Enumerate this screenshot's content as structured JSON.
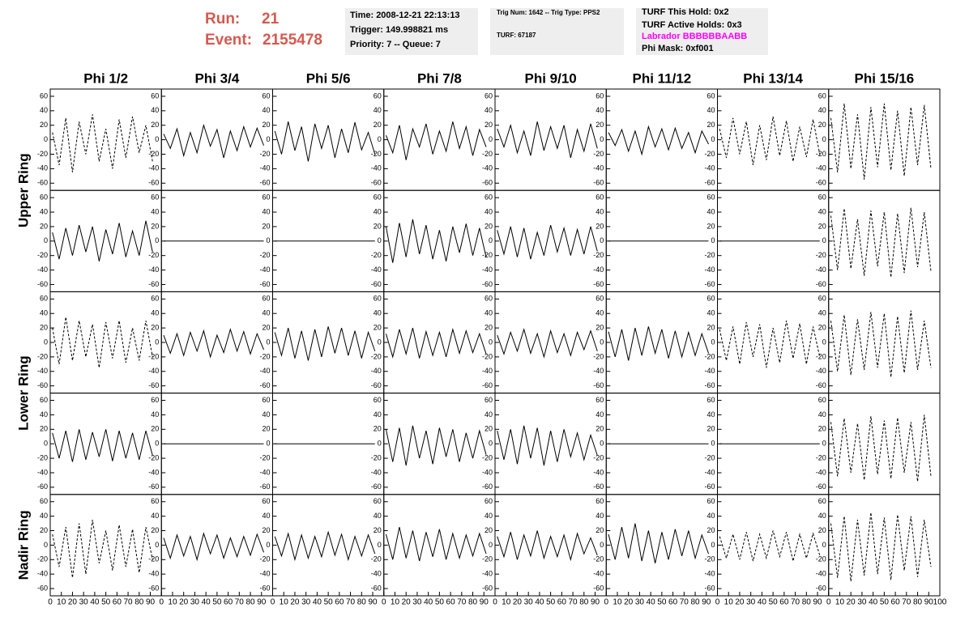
{
  "header": {
    "run_label": "Run:",
    "run": "21",
    "event_label": "Event:",
    "event": "2155478",
    "time": "Time: 2008-12-21 22:13:13",
    "trigger": "Trigger: 149.998821 ms",
    "priority": "Priority: 7 -- Queue: 7",
    "trig_num": "Trig Num: 1642 -- Trig Type: PPS2",
    "turf": "TURF: 67187",
    "turf_hold": "TURF This Hold: 0x2",
    "turf_active": "TURF Active Holds: 0x3",
    "labrador": "Labrador BBBBBBAABB",
    "phi_mask": "Phi Mask: 0xf001"
  },
  "chart_data": {
    "type": "waveform-grid",
    "columns": [
      "Phi 1/2",
      "Phi 3/4",
      "Phi 5/6",
      "Phi 7/8",
      "Phi 9/10",
      "Phi 11/12",
      "Phi 13/14",
      "Phi 15/16"
    ],
    "ring_labels": [
      "Upper Ring",
      "Lower Ring",
      "Nadir Ring"
    ],
    "xlim": [
      0,
      100
    ],
    "xticks": [
      0,
      10,
      20,
      30,
      40,
      50,
      60,
      70,
      80,
      90,
      100
    ],
    "ylim": [
      -70,
      70
    ],
    "yticks": [
      -60,
      -40,
      -20,
      0,
      20,
      40,
      60
    ],
    "x": [
      2,
      8,
      14,
      20,
      26,
      32,
      38,
      44,
      50,
      56,
      62,
      68,
      74,
      80,
      86,
      92
    ],
    "panels": [
      [
        {
          "style": "dashed",
          "values": [
            10,
            -35,
            30,
            -45,
            25,
            -20,
            35,
            -30,
            15,
            -40,
            28,
            -25,
            32,
            -18,
            20,
            -30
          ]
        },
        {
          "style": "solid",
          "values": [
            8,
            -12,
            15,
            -22,
            10,
            -18,
            20,
            -9,
            14,
            -25,
            12,
            -15,
            18,
            -10,
            16,
            -8
          ]
        },
        {
          "style": "solid",
          "values": [
            12,
            -20,
            25,
            -15,
            18,
            -30,
            22,
            -12,
            20,
            -25,
            15,
            -18,
            24,
            -14,
            10,
            -20
          ]
        },
        {
          "style": "solid",
          "values": [
            6,
            -18,
            20,
            -28,
            15,
            -10,
            22,
            -20,
            12,
            -16,
            25,
            -12,
            18,
            -22,
            14,
            -10
          ]
        },
        {
          "style": "solid",
          "values": [
            15,
            -10,
            20,
            -18,
            12,
            -22,
            25,
            -15,
            18,
            -12,
            20,
            -25,
            14,
            -16,
            22,
            -12
          ]
        },
        {
          "style": "solid",
          "values": [
            10,
            -8,
            14,
            -16,
            12,
            -20,
            18,
            -10,
            15,
            -14,
            16,
            -12,
            10,
            -18,
            12,
            -6
          ]
        },
        {
          "style": "dashed",
          "values": [
            15,
            -25,
            30,
            -20,
            25,
            -35,
            20,
            -28,
            32,
            -22,
            26,
            -30,
            18,
            -24,
            28,
            -20
          ]
        },
        {
          "style": "dashed",
          "values": [
            30,
            -45,
            50,
            -40,
            35,
            -55,
            45,
            -38,
            50,
            -42,
            40,
            -50,
            45,
            -35,
            48,
            -40
          ]
        }
      ],
      [
        {
          "style": "solid",
          "values": [
            12,
            -25,
            18,
            -20,
            22,
            -15,
            20,
            -28,
            16,
            -18,
            25,
            -22,
            14,
            -20,
            28,
            -15
          ]
        },
        {
          "style": "solid",
          "values": [
            0,
            0,
            0,
            0,
            0,
            0,
            0,
            0,
            0,
            0,
            0,
            0,
            0,
            0,
            0,
            0
          ]
        },
        {
          "style": "solid",
          "values": [
            0,
            0,
            0,
            0,
            0,
            0,
            0,
            0,
            0,
            0,
            0,
            0,
            0,
            0,
            0,
            0
          ]
        },
        {
          "style": "solid",
          "values": [
            20,
            -30,
            25,
            -22,
            30,
            -18,
            22,
            -25,
            15,
            -28,
            20,
            -16,
            24,
            -20,
            18,
            -22
          ]
        },
        {
          "style": "solid",
          "values": [
            15,
            -18,
            20,
            -22,
            18,
            -25,
            12,
            -20,
            22,
            -15,
            18,
            -20,
            16,
            -18,
            20,
            -14
          ]
        },
        {
          "style": "solid",
          "values": [
            0,
            0,
            0,
            0,
            0,
            0,
            0,
            0,
            0,
            0,
            0,
            0,
            0,
            0,
            0,
            0
          ]
        },
        {
          "style": "solid",
          "values": [
            0,
            0,
            0,
            0,
            0,
            0,
            0,
            0,
            0,
            0,
            0,
            0,
            0,
            0,
            0,
            0
          ]
        },
        {
          "style": "dashed",
          "values": [
            35,
            -40,
            45,
            -38,
            30,
            -48,
            42,
            -35,
            40,
            -50,
            38,
            -44,
            46,
            -36,
            40,
            -42
          ]
        }
      ],
      [
        {
          "style": "dashed",
          "values": [
            20,
            -30,
            35,
            -25,
            30,
            -20,
            25,
            -35,
            28,
            -22,
            30,
            -28,
            20,
            -25,
            30,
            -20
          ]
        },
        {
          "style": "solid",
          "values": [
            10,
            -15,
            12,
            -18,
            14,
            -12,
            16,
            -20,
            10,
            -14,
            18,
            -12,
            15,
            -16,
            12,
            -10
          ]
        },
        {
          "style": "solid",
          "values": [
            14,
            -18,
            20,
            -22,
            16,
            -25,
            18,
            -20,
            22,
            -15,
            20,
            -18,
            16,
            -22,
            14,
            -12
          ]
        },
        {
          "style": "solid",
          "values": [
            12,
            -20,
            18,
            -16,
            20,
            -22,
            15,
            -18,
            14,
            -20,
            18,
            -15,
            16,
            -14,
            12,
            -16
          ]
        },
        {
          "style": "solid",
          "values": [
            10,
            -16,
            14,
            -12,
            18,
            -15,
            12,
            -20,
            16,
            -14,
            12,
            -18,
            14,
            -10,
            16,
            -12
          ]
        },
        {
          "style": "solid",
          "values": [
            15,
            -20,
            18,
            -25,
            20,
            -18,
            22,
            -15,
            18,
            -22,
            16,
            -20,
            14,
            -18,
            12,
            -15
          ]
        },
        {
          "style": "dashed",
          "values": [
            18,
            -25,
            22,
            -30,
            28,
            -20,
            25,
            -35,
            20,
            -28,
            30,
            -22,
            26,
            -30,
            22,
            -20
          ]
        },
        {
          "style": "dashed",
          "values": [
            30,
            -40,
            38,
            -45,
            32,
            -38,
            42,
            -35,
            40,
            -48,
            36,
            -42,
            44,
            -38,
            30,
            -35
          ]
        }
      ],
      [
        {
          "style": "solid",
          "values": [
            15,
            -20,
            18,
            -25,
            20,
            -22,
            16,
            -18,
            20,
            -24,
            18,
            -20,
            15,
            -22,
            18,
            -16
          ]
        },
        {
          "style": "solid",
          "values": [
            0,
            0,
            0,
            0,
            0,
            0,
            0,
            0,
            0,
            0,
            0,
            0,
            0,
            0,
            0,
            0
          ]
        },
        {
          "style": "solid",
          "values": [
            0,
            0,
            0,
            0,
            0,
            0,
            0,
            0,
            0,
            0,
            0,
            0,
            0,
            0,
            0,
            0
          ]
        },
        {
          "style": "solid",
          "values": [
            20,
            -25,
            22,
            -30,
            25,
            -20,
            18,
            -28,
            22,
            -18,
            20,
            -25,
            15,
            -20,
            18,
            -15
          ]
        },
        {
          "style": "solid",
          "values": [
            18,
            -22,
            20,
            -28,
            25,
            -20,
            22,
            -30,
            18,
            -25,
            20,
            -18,
            15,
            -22,
            12,
            -16
          ]
        },
        {
          "style": "solid",
          "values": [
            0,
            0,
            0,
            0,
            0,
            0,
            0,
            0,
            0,
            0,
            0,
            0,
            0,
            0,
            0,
            0
          ]
        },
        {
          "style": "solid",
          "values": [
            0,
            0,
            0,
            0,
            0,
            0,
            0,
            0,
            0,
            0,
            0,
            0,
            0,
            0,
            0,
            0
          ]
        },
        {
          "style": "dashed",
          "values": [
            30,
            -45,
            35,
            -40,
            28,
            -50,
            38,
            -42,
            32,
            -48,
            36,
            -40,
            30,
            -52,
            40,
            -45
          ]
        }
      ],
      [
        {
          "style": "dashed",
          "values": [
            15,
            -30,
            25,
            -45,
            30,
            -40,
            35,
            -25,
            20,
            -35,
            28,
            -30,
            22,
            -38,
            25,
            -20
          ]
        },
        {
          "style": "solid",
          "values": [
            10,
            -18,
            14,
            -15,
            12,
            -20,
            16,
            -12,
            14,
            -18,
            10,
            -16,
            12,
            -14,
            15,
            -10
          ]
        },
        {
          "style": "solid",
          "values": [
            12,
            -15,
            16,
            -20,
            14,
            -18,
            12,
            -16,
            18,
            -14,
            15,
            -20,
            12,
            -15,
            14,
            -12
          ]
        },
        {
          "style": "solid",
          "values": [
            15,
            -20,
            25,
            -18,
            20,
            -22,
            18,
            -16,
            22,
            -20,
            16,
            -18,
            14,
            -15,
            16,
            -12
          ]
        },
        {
          "style": "solid",
          "values": [
            12,
            -16,
            18,
            -20,
            14,
            -15,
            20,
            -18,
            12,
            -16,
            14,
            -20,
            16,
            -12,
            10,
            -14
          ]
        },
        {
          "style": "solid",
          "values": [
            15,
            -20,
            25,
            -18,
            30,
            -22,
            20,
            -25,
            18,
            -20,
            22,
            -15,
            20,
            -18,
            14,
            -12
          ]
        },
        {
          "style": "dashed",
          "values": [
            12,
            -18,
            15,
            -20,
            18,
            -22,
            15,
            -18,
            20,
            -16,
            18,
            -22,
            15,
            -18,
            16,
            -14
          ]
        },
        {
          "style": "dashed",
          "values": [
            30,
            -45,
            40,
            -50,
            35,
            -42,
            45,
            -40,
            38,
            -48,
            42,
            -35,
            40,
            -44,
            35,
            -30
          ]
        }
      ]
    ]
  }
}
